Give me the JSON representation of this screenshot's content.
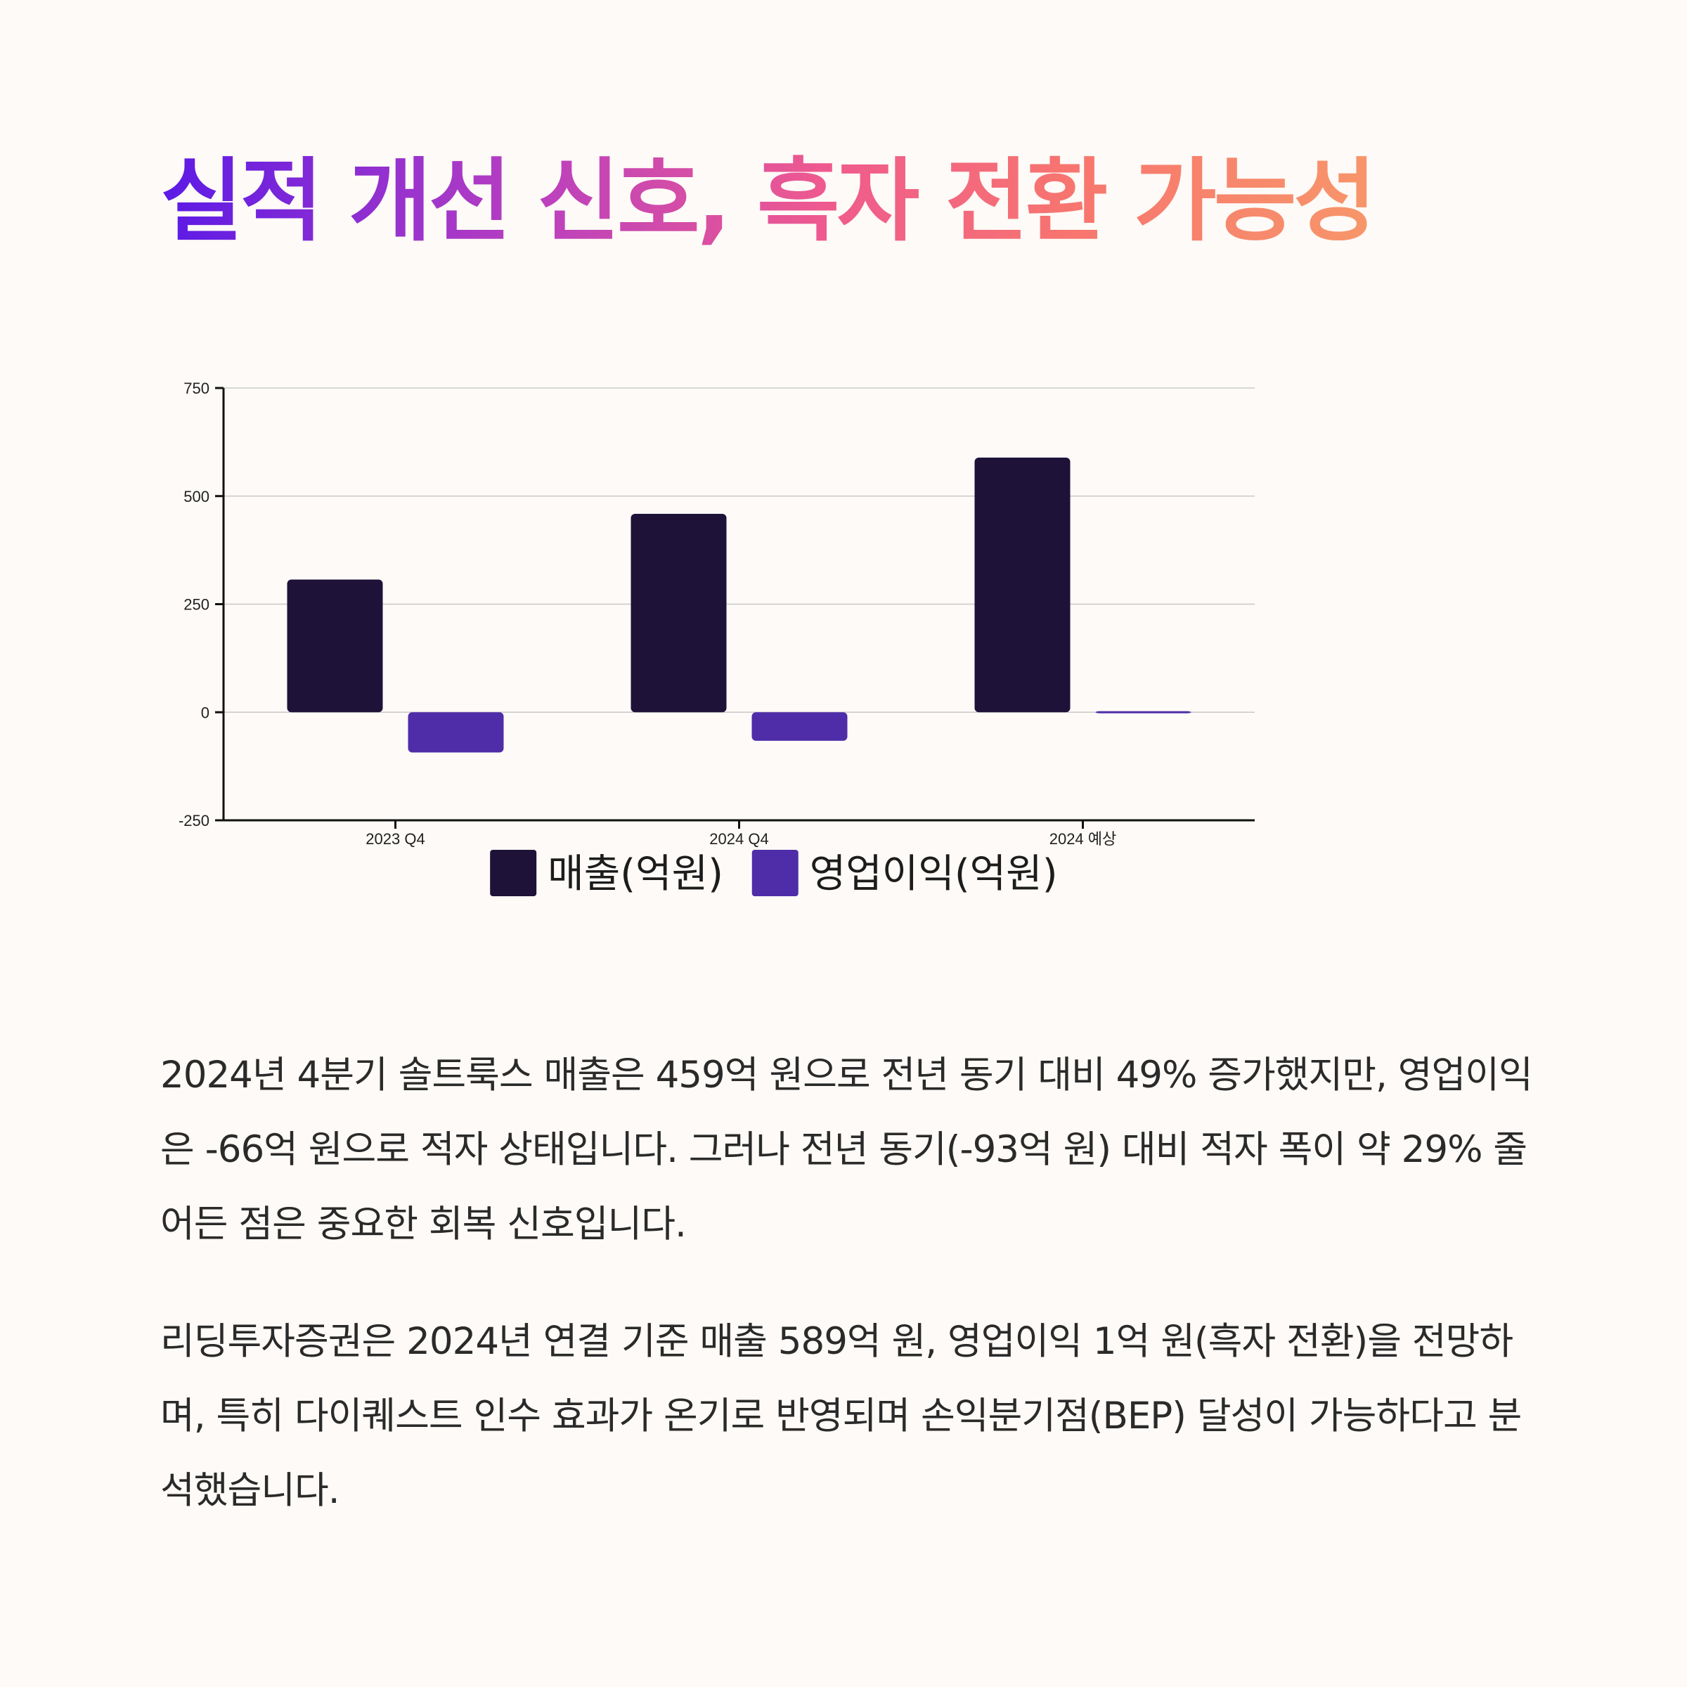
{
  "title": "실적 개선 신호, 흑자 전환 가능성",
  "colors": {
    "revenue": "#1e1238",
    "operating_profit": "#4f2da8"
  },
  "chart_data": {
    "type": "bar",
    "categories": [
      "2023 Q4",
      "2024 Q4",
      "2024 예상"
    ],
    "series": [
      {
        "name": "매출(억원)",
        "values": [
          307,
          459,
          589
        ]
      },
      {
        "name": "영업이익(억원)",
        "values": [
          -93,
          -66,
          1
        ]
      }
    ],
    "ylim": [
      -250,
      750
    ],
    "yticks": [
      -250,
      0,
      250,
      500,
      750
    ],
    "grid": true,
    "legend": "bottom-center",
    "title": "",
    "xlabel": "",
    "ylabel": ""
  },
  "paragraphs": [
    "2024년 4분기 솔트룩스 매출은 459억 원으로 전년 동기 대비 49% 증가했지만, 영업이익은 -66억 원으로 적자 상태입니다. 그러나 전년 동기(-93억 원) 대비 적자 폭이 약 29% 줄어든 점은 중요한 회복 신호입니다.",
    "리딩투자증권은 2024년 연결 기준 매출 589억 원, 영업이익 1억 원(흑자 전환)을 전망하며, 특히 다이퀘스트 인수 효과가 온기로 반영되며 손익분기점(BEP) 달성이 가능하다고 분석했습니다."
  ]
}
